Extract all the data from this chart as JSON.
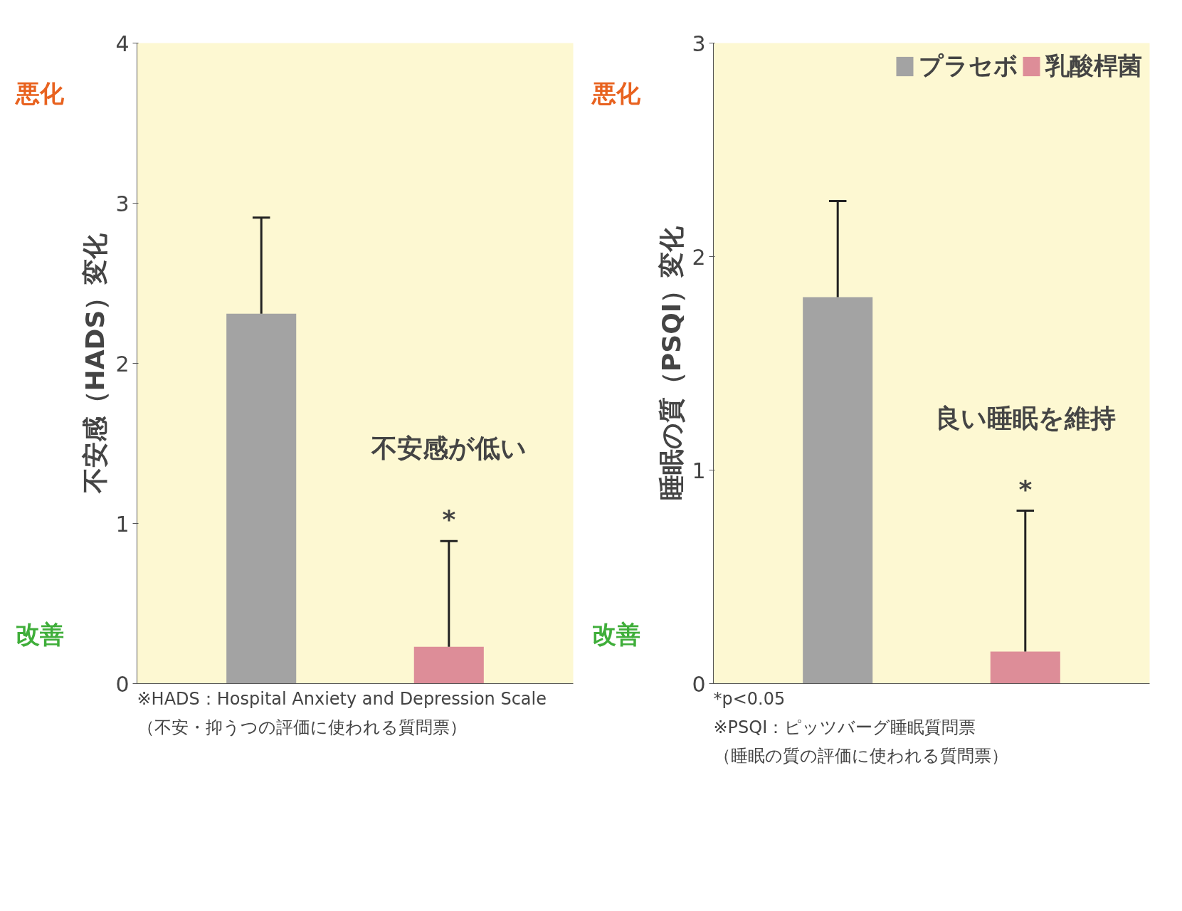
{
  "chart_data": [
    {
      "type": "bar",
      "categories": [
        null
      ],
      "ylabel": "不安感（HADS）変化",
      "ylim": [
        0,
        4
      ],
      "yticks": [
        0,
        1,
        2,
        3,
        4
      ],
      "grid": false,
      "tick_labels": "y",
      "series": [
        {
          "color": "#a3a3a3",
          "values": [
            2.31
          ],
          "errors": [
            [
              2.31,
              2.91
            ]
          ]
        },
        {
          "color": "#dd8d98",
          "values": [
            0.23
          ],
          "errors": [
            [
              0.23,
              0.89
            ]
          ]
        }
      ],
      "annotations": [
        "悪化",
        "改善",
        "不安感が低い",
        "*",
        "※HADS：Hospital Anxiety and Depression Scale",
        "（不安・抑うつの評価に使われる質問票）"
      ]
    },
    {
      "type": "bar",
      "categories": [
        null
      ],
      "ylabel": "睡眠の質（PSQI）変化",
      "ylim": [
        0,
        3
      ],
      "yticks": [
        0,
        1,
        2,
        3
      ],
      "grid": false,
      "tick_labels": "y",
      "legend": "top right",
      "series": [
        {
          "name": "プラセボ",
          "color": "#a3a3a3",
          "values": [
            1.81
          ],
          "errors": [
            [
              1.81,
              2.26
            ]
          ]
        },
        {
          "name": "乳酸桿菌",
          "color": "#dd8d98",
          "values": [
            0.15
          ],
          "errors": [
            [
              0.15,
              0.81
            ]
          ]
        }
      ],
      "annotations": [
        "悪化",
        "改善",
        "良い睡眠を維持",
        "*",
        "*p<0.05",
        "※PSQI：ピッツバーグ睡眠質問票",
        "（睡眠の質の評価に使われる質問票）"
      ]
    }
  ]
}
